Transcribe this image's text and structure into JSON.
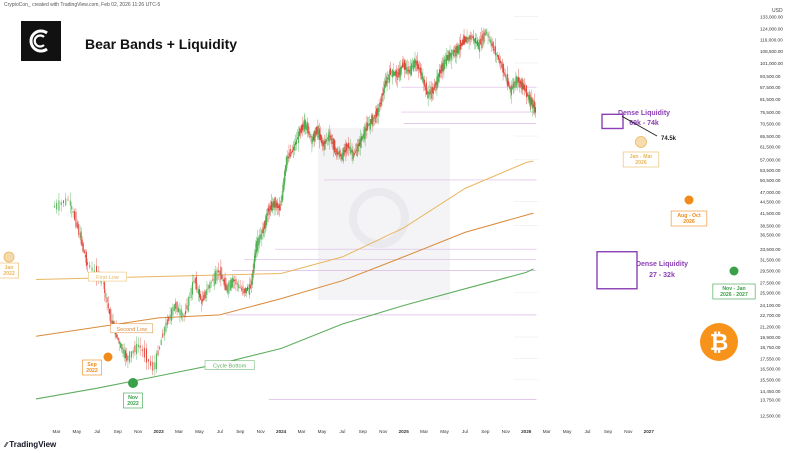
{
  "header": {
    "credit": "CryptoCon_ created with TradingView.com, Feb 02, 2026 11:26 UTC-5",
    "title": "Bear Bands + Liquidity",
    "currency": "USD",
    "brand": "TradingView"
  },
  "chart_data": {
    "type": "candlestick",
    "y_scale": "log",
    "ylim": [
      11750,
      135000
    ],
    "x_range": [
      "2021-03",
      "2027-01"
    ],
    "yticks": [
      "133,000.00",
      "124,000.00",
      "116,000.00",
      "108,500.00",
      "101,000.00",
      "93,500.00",
      "87,500.00",
      "81,500.00",
      "75,500.00",
      "70,500.00",
      "65,500.00",
      "61,500.00",
      "57,000.00",
      "53,500.00",
      "50,500.00",
      "47,000.00",
      "44,500.00",
      "41,500.00",
      "38,500.00",
      "36,500.00",
      "33,500.00",
      "31,500.00",
      "29,500.00",
      "27,500.00",
      "25,900.00",
      "24,100.00",
      "22,700.00",
      "21,200.00",
      "19,900.00",
      "18,750.00",
      "17,550.00",
      "16,500.00",
      "15,500.00",
      "14,450.00",
      "13,750.00",
      "12,500.00"
    ],
    "xticks": [
      "Mar",
      "May",
      "Jul",
      "Sep",
      "Nov",
      "2023",
      "Mar",
      "May",
      "Jul",
      "Sep",
      "Nov",
      "2024",
      "Mar",
      "May",
      "Jul",
      "Sep",
      "Nov",
      "2025",
      "Mar",
      "May",
      "Jul",
      "Sep",
      "Nov",
      "2026",
      "Mar",
      "May",
      "Jul",
      "Sep",
      "Nov",
      "2027"
    ],
    "price_path": [
      [
        2021.15,
        43000
      ],
      [
        2021.28,
        45000
      ],
      [
        2021.36,
        37000
      ],
      [
        2021.42,
        31000
      ],
      [
        2021.55,
        28000
      ],
      [
        2021.62,
        22000
      ],
      [
        2021.68,
        19500
      ],
      [
        2021.75,
        17500
      ],
      [
        2021.85,
        19000
      ],
      [
        2021.97,
        16500
      ],
      [
        2022.06,
        21000
      ],
      [
        2022.14,
        24000
      ],
      [
        2022.22,
        22500
      ],
      [
        2022.3,
        28000
      ],
      [
        2022.36,
        24500
      ],
      [
        2022.42,
        27000
      ],
      [
        2022.5,
        29500
      ],
      [
        2022.56,
        26500
      ],
      [
        2022.62,
        28000
      ],
      [
        2022.7,
        26000
      ],
      [
        2022.76,
        26800
      ],
      [
        2022.8,
        34000
      ],
      [
        2022.86,
        37500
      ],
      [
        2022.9,
        42000
      ],
      [
        2022.95,
        44000
      ],
      [
        2023.0,
        42500
      ],
      [
        2023.05,
        57000
      ],
      [
        2023.1,
        60000
      ],
      [
        2023.16,
        67000
      ],
      [
        2023.2,
        71000
      ],
      [
        2023.26,
        64000
      ],
      [
        2023.3,
        68000
      ],
      [
        2023.35,
        62000
      ],
      [
        2023.4,
        66000
      ],
      [
        2023.45,
        60000
      ],
      [
        2023.5,
        58000
      ],
      [
        2023.55,
        62000
      ],
      [
        2023.6,
        58500
      ],
      [
        2023.65,
        63000
      ],
      [
        2023.7,
        68500
      ],
      [
        2023.75,
        72000
      ],
      [
        2023.8,
        76000
      ],
      [
        2023.85,
        88000
      ],
      [
        2023.9,
        96000
      ],
      [
        2023.96,
        94000
      ],
      [
        2024.0,
        100000
      ],
      [
        2024.05,
        96000
      ],
      [
        2024.1,
        102000
      ],
      [
        2024.15,
        95000
      ],
      [
        2024.2,
        84000
      ],
      [
        2024.25,
        86000
      ],
      [
        2024.3,
        95000
      ],
      [
        2024.35,
        103000
      ],
      [
        2024.4,
        107000
      ],
      [
        2024.45,
        110000
      ],
      [
        2024.5,
        115000
      ],
      [
        2024.56,
        118000
      ],
      [
        2024.62,
        112000
      ],
      [
        2024.68,
        122000
      ],
      [
        2024.74,
        110000
      ],
      [
        2024.8,
        101000
      ],
      [
        2024.84,
        92000
      ],
      [
        2024.88,
        86000
      ],
      [
        2024.93,
        92000
      ],
      [
        2024.98,
        88000
      ],
      [
        2025.02,
        83000
      ],
      [
        2025.05,
        80000
      ],
      [
        2025.08,
        76000
      ]
    ],
    "series": [
      {
        "name": "First Low",
        "color": "#e8b760",
        "points": [
          [
            2021.0,
            28000
          ],
          [
            2022.0,
            28500
          ],
          [
            2023.0,
            29000
          ],
          [
            2023.5,
            32000
          ],
          [
            2024.0,
            38000
          ],
          [
            2024.5,
            48000
          ],
          [
            2025.0,
            56000
          ],
          [
            2025.06,
            56500
          ]
        ]
      },
      {
        "name": "Second Low",
        "color": "#d98a3a",
        "points": [
          [
            2021.0,
            20000
          ],
          [
            2022.0,
            22300
          ],
          [
            2022.5,
            22700
          ],
          [
            2023.0,
            25000
          ],
          [
            2023.5,
            27800
          ],
          [
            2024.0,
            32000
          ],
          [
            2024.5,
            37000
          ],
          [
            2025.0,
            41000
          ],
          [
            2025.06,
            41500
          ]
        ]
      },
      {
        "name": "Cycle Bottom",
        "color": "#5fae5f",
        "points": [
          [
            2021.0,
            13800
          ],
          [
            2021.5,
            14700
          ],
          [
            2022.0,
            15800
          ],
          [
            2022.5,
            17000
          ],
          [
            2023.0,
            18600
          ],
          [
            2023.5,
            21500
          ],
          [
            2024.0,
            24000
          ],
          [
            2024.5,
            26500
          ],
          [
            2025.0,
            29200
          ],
          [
            2025.06,
            29800
          ]
        ]
      }
    ],
    "annotations": {
      "dense_top": {
        "title": "Dense Liquidity",
        "range": "69k - 74k",
        "price": "74.5k",
        "color": "#8b3fb5"
      },
      "dense_bottom": {
        "title": "Dense Liquidity",
        "range": "27 - 32k",
        "color": "#8b3fb5"
      },
      "band_labels": [
        "First Low",
        "Second Low",
        "Cycle Bottom"
      ],
      "date_labels": [
        {
          "lines": [
            "Jan",
            "2022"
          ],
          "color": "#e8b760"
        },
        {
          "lines": [
            "Sep",
            "2022"
          ],
          "color": "#f08a1a"
        },
        {
          "lines": [
            "Nov",
            "2022"
          ],
          "color": "#3aa04a"
        },
        {
          "lines": [
            "Jan - Mar",
            "2026"
          ],
          "color": "#e8b760"
        },
        {
          "lines": [
            "Aug - Oct",
            "2026"
          ],
          "color": "#f08a1a"
        },
        {
          "lines": [
            "Nov - Jan",
            "2026 - 2027"
          ],
          "color": "#3aa04a"
        }
      ]
    }
  }
}
